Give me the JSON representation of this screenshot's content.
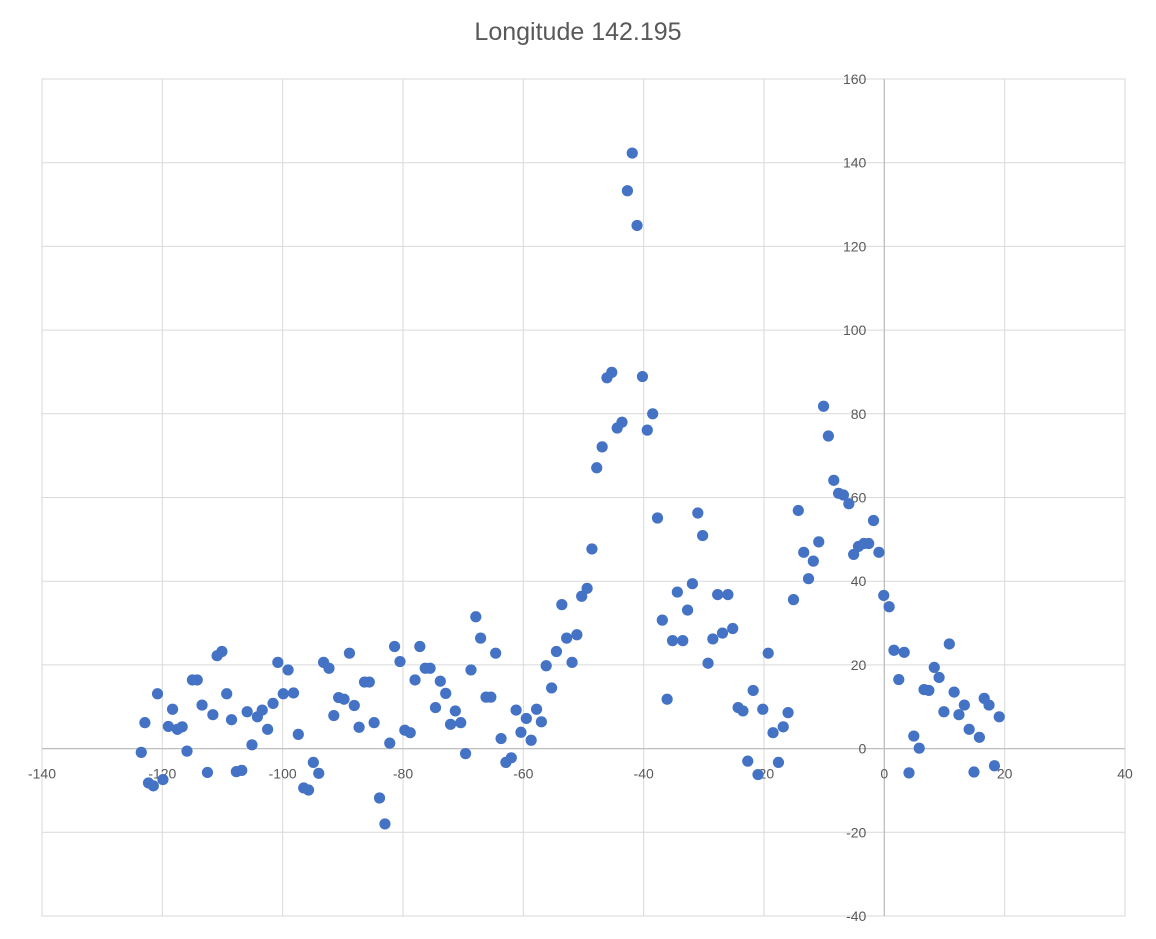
{
  "chart_data": {
    "type": "scatter",
    "title": "Longitude 142.195",
    "xlabel": "",
    "ylabel": "",
    "xlim": [
      -140,
      40
    ],
    "ylim": [
      -40,
      160
    ],
    "x_ticks": [
      -140,
      -120,
      -100,
      -80,
      -60,
      -40,
      -20,
      0,
      20,
      40
    ],
    "y_ticks": [
      -40,
      -20,
      0,
      20,
      40,
      60,
      80,
      100,
      120,
      140,
      160
    ],
    "grid": true,
    "marker_color": "#4472C4",
    "series": [
      {
        "points": [
          [
            -123.5,
            -0.9
          ],
          [
            -122.9,
            6.2
          ],
          [
            -122.3,
            -8.2
          ],
          [
            -121.5,
            -8.9
          ],
          [
            -120.8,
            13.1
          ],
          [
            -119.9,
            -7.4
          ],
          [
            -119.0,
            5.3
          ],
          [
            -118.3,
            9.4
          ],
          [
            -117.5,
            4.6
          ],
          [
            -116.7,
            5.2
          ],
          [
            -115.9,
            -0.6
          ],
          [
            -115.0,
            16.4
          ],
          [
            -114.2,
            16.4
          ],
          [
            -113.4,
            10.4
          ],
          [
            -112.5,
            -5.7
          ],
          [
            -111.6,
            8.1
          ],
          [
            -110.9,
            22.2
          ],
          [
            -110.1,
            23.2
          ],
          [
            -109.3,
            13.1
          ],
          [
            -108.5,
            6.9
          ],
          [
            -107.7,
            -5.5
          ],
          [
            -106.8,
            -5.2
          ],
          [
            -105.9,
            8.8
          ],
          [
            -105.1,
            0.9
          ],
          [
            -104.2,
            7.6
          ],
          [
            -103.4,
            9.2
          ],
          [
            -102.5,
            4.6
          ],
          [
            -101.6,
            10.8
          ],
          [
            -100.8,
            20.6
          ],
          [
            -99.9,
            13.1
          ],
          [
            -99.1,
            18.8
          ],
          [
            -98.2,
            13.3
          ],
          [
            -97.4,
            3.4
          ],
          [
            -96.5,
            -9.4
          ],
          [
            -95.7,
            -9.9
          ],
          [
            -94.9,
            -3.3
          ],
          [
            -94.0,
            -5.9
          ],
          [
            -93.2,
            20.6
          ],
          [
            -92.3,
            19.2
          ],
          [
            -91.5,
            7.9
          ],
          [
            -90.7,
            12.2
          ],
          [
            -89.8,
            11.8
          ],
          [
            -88.9,
            22.8
          ],
          [
            -88.1,
            10.3
          ],
          [
            -87.3,
            5.1
          ],
          [
            -86.4,
            15.9
          ],
          [
            -85.6,
            15.9
          ],
          [
            -84.8,
            6.2
          ],
          [
            -83.9,
            -11.8
          ],
          [
            -83.0,
            -18.0
          ],
          [
            -82.2,
            1.3
          ],
          [
            -81.4,
            24.4
          ],
          [
            -80.5,
            20.8
          ],
          [
            -79.7,
            4.4
          ],
          [
            -78.8,
            3.8
          ],
          [
            -78.0,
            16.4
          ],
          [
            -77.2,
            24.4
          ],
          [
            -76.3,
            19.2
          ],
          [
            -75.5,
            19.2
          ],
          [
            -74.6,
            9.8
          ],
          [
            -73.8,
            16.1
          ],
          [
            -72.9,
            13.2
          ],
          [
            -72.1,
            5.8
          ],
          [
            -71.3,
            9.0
          ],
          [
            -70.4,
            6.2
          ],
          [
            -69.6,
            -1.2
          ],
          [
            -68.7,
            18.8
          ],
          [
            -67.9,
            31.5
          ],
          [
            -67.1,
            26.4
          ],
          [
            -66.2,
            12.3
          ],
          [
            -65.4,
            12.3
          ],
          [
            -64.6,
            22.8
          ],
          [
            -63.7,
            2.4
          ],
          [
            -62.9,
            -3.3
          ],
          [
            -62.0,
            -2.2
          ],
          [
            -61.2,
            9.2
          ],
          [
            -60.4,
            3.9
          ],
          [
            -59.5,
            7.2
          ],
          [
            -58.7,
            2.0
          ],
          [
            -57.8,
            9.4
          ],
          [
            -57.0,
            6.4
          ],
          [
            -56.2,
            19.8
          ],
          [
            -55.3,
            14.5
          ],
          [
            -54.5,
            23.2
          ],
          [
            -53.6,
            34.4
          ],
          [
            -52.8,
            26.4
          ],
          [
            -51.9,
            20.6
          ],
          [
            -51.1,
            27.2
          ],
          [
            -50.3,
            36.4
          ],
          [
            -49.4,
            38.3
          ],
          [
            -48.6,
            47.7
          ],
          [
            -47.8,
            67.1
          ],
          [
            -46.9,
            72.1
          ],
          [
            -46.1,
            88.6
          ],
          [
            -45.3,
            89.9
          ],
          [
            -44.4,
            76.6
          ],
          [
            -43.6,
            78.0
          ],
          [
            -42.7,
            133.3
          ],
          [
            -41.9,
            142.3
          ],
          [
            -41.1,
            125.0
          ],
          [
            -40.2,
            88.9
          ],
          [
            -39.4,
            76.1
          ],
          [
            -38.5,
            80.0
          ],
          [
            -37.7,
            55.1
          ],
          [
            -36.9,
            30.7
          ],
          [
            -36.1,
            11.8
          ],
          [
            -35.2,
            25.8
          ],
          [
            -34.4,
            37.4
          ],
          [
            -33.5,
            25.8
          ],
          [
            -32.7,
            33.1
          ],
          [
            -31.9,
            39.4
          ],
          [
            -31.0,
            56.3
          ],
          [
            -30.2,
            50.9
          ],
          [
            -29.3,
            20.4
          ],
          [
            -28.5,
            26.2
          ],
          [
            -27.7,
            36.8
          ],
          [
            -26.9,
            27.6
          ],
          [
            -26.0,
            36.8
          ],
          [
            -25.2,
            28.7
          ],
          [
            -24.3,
            9.8
          ],
          [
            -23.5,
            9.0
          ],
          [
            -22.7,
            -3.0
          ],
          [
            -21.8,
            13.9
          ],
          [
            -21.0,
            -6.2
          ],
          [
            -20.2,
            9.4
          ],
          [
            -19.3,
            22.8
          ],
          [
            -18.5,
            3.8
          ],
          [
            -17.6,
            -3.3
          ],
          [
            -16.8,
            5.2
          ],
          [
            -16.0,
            8.6
          ],
          [
            -15.1,
            35.6
          ],
          [
            -14.3,
            56.9
          ],
          [
            -13.4,
            46.9
          ],
          [
            -12.6,
            40.6
          ],
          [
            -11.8,
            44.8
          ],
          [
            -10.9,
            49.4
          ],
          [
            -10.1,
            81.8
          ],
          [
            -9.3,
            74.7
          ],
          [
            -8.4,
            64.1
          ],
          [
            -7.6,
            61.0
          ],
          [
            -6.8,
            60.6
          ],
          [
            -5.9,
            58.5
          ],
          [
            -5.1,
            46.4
          ],
          [
            -4.3,
            48.3
          ],
          [
            -3.4,
            49.0
          ],
          [
            -2.6,
            49.0
          ],
          [
            -1.8,
            54.5
          ],
          [
            -0.9,
            46.9
          ],
          [
            -0.1,
            36.6
          ],
          [
            0.8,
            33.9
          ],
          [
            1.6,
            23.5
          ],
          [
            2.4,
            16.5
          ],
          [
            3.3,
            23.0
          ],
          [
            4.1,
            -5.8
          ],
          [
            4.9,
            3.0
          ],
          [
            5.8,
            0.1
          ],
          [
            6.6,
            14.1
          ],
          [
            7.4,
            13.9
          ],
          [
            8.3,
            19.4
          ],
          [
            9.1,
            17.0
          ],
          [
            9.9,
            8.8
          ],
          [
            10.8,
            25.0
          ],
          [
            11.6,
            13.5
          ],
          [
            12.4,
            8.1
          ],
          [
            13.3,
            10.4
          ],
          [
            14.1,
            4.6
          ],
          [
            14.9,
            -5.6
          ],
          [
            15.8,
            2.7
          ],
          [
            16.6,
            12.0
          ],
          [
            17.4,
            10.4
          ],
          [
            18.3,
            -4.1
          ],
          [
            19.1,
            7.6
          ]
        ]
      }
    ]
  }
}
